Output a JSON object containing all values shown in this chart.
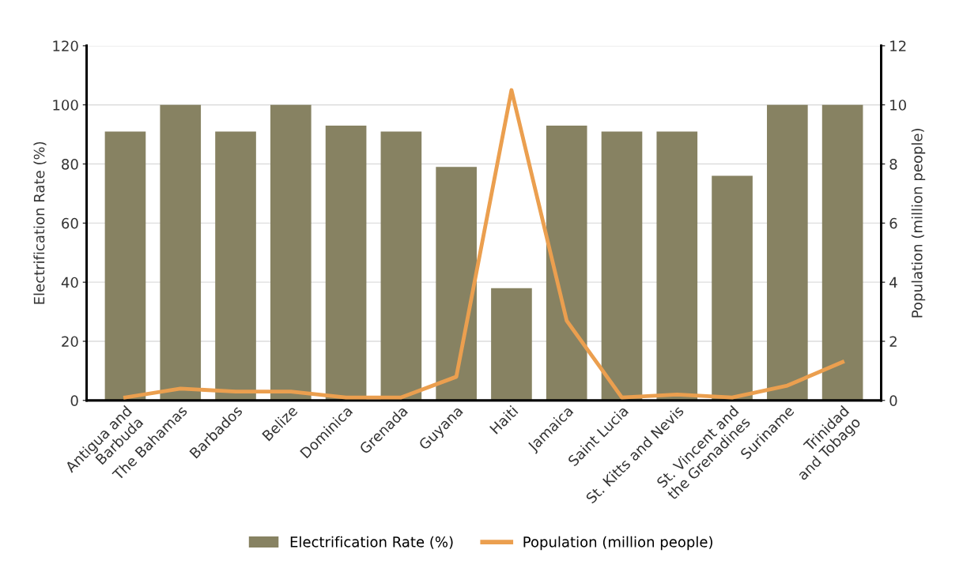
{
  "chart_data": {
    "type": "bar",
    "categories": [
      "Antigua and\nBarbuda",
      "The Bahamas",
      "Barbados",
      "Belize",
      "Dominica",
      "Grenada",
      "Guyana",
      "Haiti",
      "Jamaica",
      "Saint Lucia",
      "St. Kitts and Nevis",
      "St. Vincent and\nthe Grenadines",
      "Suriname",
      "Trinidad\nand Tobago"
    ],
    "series": [
      {
        "name": "Electrification Rate (%)",
        "color": "#878262",
        "values": [
          91,
          100,
          91,
          100,
          93,
          91,
          79,
          38,
          93,
          91,
          91,
          76,
          100,
          100
        ]
      },
      {
        "name": "Population (million people)",
        "type": "line",
        "axis": "y2",
        "color": "#eb9f4f",
        "values": [
          0.1,
          0.4,
          0.3,
          0.3,
          0.1,
          0.1,
          0.8,
          10.5,
          2.7,
          0.1,
          0.2,
          0.1,
          0.5,
          1.3
        ]
      }
    ],
    "ylabel": "Electrification Rate (%)",
    "y2label": "Population (million people)",
    "ylim": [
      0,
      120
    ],
    "yticks": [
      0,
      20,
      40,
      60,
      80,
      100,
      120
    ],
    "y2lim": [
      0,
      12
    ],
    "y2ticks": [
      0,
      2,
      4,
      6,
      8,
      10,
      12
    ],
    "grid": "y",
    "legend": "bottom",
    "marker": "none"
  }
}
